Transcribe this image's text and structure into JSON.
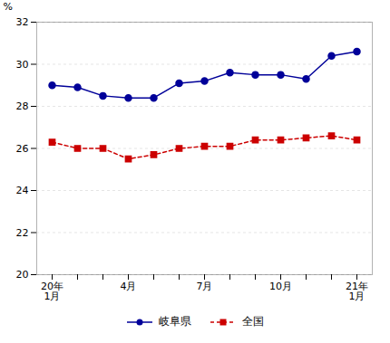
{
  "chart_data": {
    "type": "line",
    "categories": [
      "20年\n1月",
      null,
      null,
      "4月",
      null,
      null,
      "7月",
      null,
      null,
      "10月",
      null,
      null,
      "21年\n1月"
    ],
    "series": [
      {
        "name": "岐阜県",
        "color": "#000099",
        "marker": "circle",
        "line_style": "solid",
        "values": [
          29.0,
          28.9,
          28.5,
          28.4,
          28.4,
          29.1,
          29.2,
          29.6,
          29.5,
          29.5,
          29.3,
          30.4,
          30.6
        ]
      },
      {
        "name": "全国",
        "color": "#CC0000",
        "marker": "square",
        "line_style": "dashed",
        "values": [
          26.3,
          26.0,
          26.0,
          25.5,
          25.7,
          26.0,
          26.1,
          26.1,
          26.4,
          26.4,
          26.5,
          26.6,
          26.4
        ]
      }
    ],
    "ylabel": "%",
    "ylim": [
      20,
      32
    ],
    "yticks": [
      20,
      22,
      24,
      26,
      28,
      30,
      32
    ],
    "grid": true,
    "legend": "bottom"
  }
}
